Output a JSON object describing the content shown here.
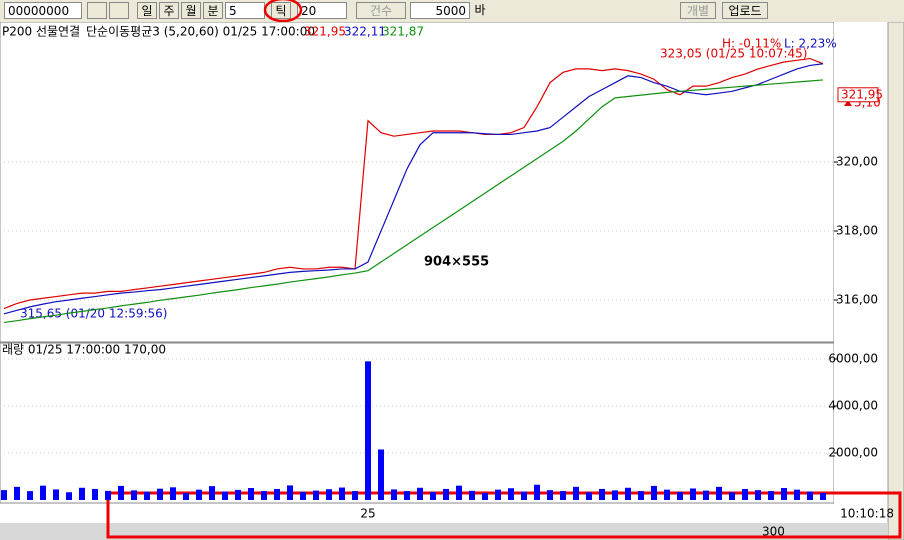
{
  "toolbar": {
    "code": "00000000",
    "periods": [
      "일",
      "주",
      "월",
      "분"
    ],
    "interval": "5",
    "tick": "틱",
    "count": "20",
    "count_type": "건수",
    "bars": "5000",
    "bars_unit": "바",
    "individual": "개별",
    "upload": "업로드"
  },
  "chart_data": [
    {
      "type": "line",
      "title": "P200 선물연결",
      "indicator": "단순이동평균3 (5,20,60) 01/25 17:00:00",
      "series": [
        {
          "color": "#e00000",
          "readout": "321,95",
          "values": [
            315.75,
            315.9,
            316.0,
            316.05,
            316.1,
            316.15,
            316.2,
            316.2,
            316.25,
            316.25,
            316.3,
            316.35,
            316.4,
            316.45,
            316.5,
            316.55,
            316.6,
            316.65,
            316.7,
            316.75,
            316.8,
            316.9,
            316.95,
            316.9,
            316.9,
            316.95,
            316.95,
            316.9,
            321.2,
            320.85,
            320.75,
            320.8,
            320.85,
            320.9,
            320.9,
            320.9,
            320.85,
            320.8,
            320.8,
            320.85,
            321.0,
            321.6,
            322.3,
            322.6,
            322.7,
            322.7,
            322.65,
            322.7,
            322.65,
            322.55,
            322.4,
            322.1,
            321.95,
            322.2,
            322.2,
            322.3,
            322.45,
            322.55,
            322.7,
            322.8,
            322.9,
            322.95,
            323.0,
            322.85
          ]
        },
        {
          "color": "#1010c0",
          "readout": "322,11",
          "values": [
            315.6,
            315.7,
            315.8,
            315.88,
            315.95,
            316.0,
            316.05,
            316.1,
            316.15,
            316.2,
            316.23,
            316.27,
            316.3,
            316.35,
            316.4,
            316.45,
            316.5,
            316.55,
            316.6,
            316.65,
            316.7,
            316.75,
            316.8,
            316.83,
            316.85,
            316.87,
            316.9,
            316.9,
            317.1,
            318.0,
            318.9,
            319.8,
            320.5,
            320.85,
            320.85,
            320.85,
            320.85,
            320.82,
            320.8,
            320.8,
            320.85,
            320.9,
            321.0,
            321.3,
            321.6,
            321.9,
            322.1,
            322.3,
            322.5,
            322.45,
            322.3,
            322.2,
            322.05,
            322.0,
            321.95,
            322.0,
            322.05,
            322.15,
            322.25,
            322.4,
            322.55,
            322.7,
            322.8,
            322.85
          ]
        },
        {
          "color": "#109010",
          "readout": "321,87",
          "values": [
            315.35,
            315.4,
            315.46,
            315.51,
            315.56,
            315.62,
            315.67,
            315.72,
            315.77,
            315.83,
            315.88,
            315.93,
            315.99,
            316.04,
            316.09,
            316.14,
            316.2,
            316.25,
            316.3,
            316.36,
            316.41,
            316.46,
            316.52,
            316.57,
            316.62,
            316.67,
            316.73,
            316.78,
            316.85,
            317.1,
            317.35,
            317.6,
            317.85,
            318.1,
            318.35,
            318.6,
            318.85,
            319.1,
            319.35,
            319.6,
            319.85,
            320.1,
            320.35,
            320.6,
            320.9,
            321.25,
            321.6,
            321.86,
            321.9,
            321.94,
            321.98,
            322.02,
            322.05,
            322.08,
            322.11,
            322.14,
            322.17,
            322.2,
            322.23,
            322.26,
            322.29,
            322.32,
            322.35,
            322.38
          ]
        }
      ],
      "ylim": [
        314.84,
        324.06
      ],
      "yticks": [
        {
          "value": 316,
          "label": "316,00"
        },
        {
          "value": 318,
          "label": "318,00"
        },
        {
          "value": 320,
          "label": "320,00"
        }
      ],
      "grid": true,
      "high_pct": "H: -0,11%",
      "low_pct": "L: 2,23%",
      "high_label": "323,05 (01/25 10:07:45)",
      "low_label": "315,65 (01/20 12:59:56)",
      "last_price": {
        "value": 321.95,
        "label": "321,95"
      },
      "change": "5,10",
      "overlay": "904×555"
    },
    {
      "type": "bar",
      "title": "래량 01/25 17:00:00 170,00",
      "color": "#0000ff",
      "categories": [
        null,
        null,
        null,
        null,
        null,
        null,
        null,
        null,
        null,
        null,
        null,
        null,
        null,
        null,
        null,
        null,
        null,
        null,
        null,
        null,
        null,
        null,
        null,
        null,
        null,
        null,
        null,
        null,
        "25",
        null,
        null,
        null,
        null,
        null,
        null,
        null,
        null,
        null,
        null,
        null,
        null,
        null,
        null,
        null,
        null,
        null,
        null,
        null,
        null,
        null,
        null,
        null,
        null,
        null,
        null,
        null,
        null,
        null,
        null,
        null,
        null,
        null,
        null,
        null
      ],
      "values": [
        420,
        560,
        380,
        610,
        450,
        330,
        520,
        470,
        390,
        600,
        410,
        350,
        480,
        540,
        300,
        440,
        590,
        360,
        430,
        510,
        380,
        470,
        620,
        340,
        400,
        460,
        530,
        380,
        5900,
        2150,
        450,
        380,
        520,
        340,
        470,
        610,
        390,
        300,
        440,
        500,
        360,
        650,
        420,
        380,
        560,
        330,
        470,
        410,
        520,
        380,
        600,
        440,
        350,
        490,
        400,
        560,
        330,
        470,
        420,
        380,
        510,
        440,
        360,
        300
      ],
      "ylim": [
        0,
        6680
      ],
      "yticks": [
        {
          "value": 2000,
          "label": "2000,00"
        },
        {
          "value": 4000,
          "label": "4000,00"
        },
        {
          "value": 6000,
          "label": "6000,00"
        }
      ]
    }
  ],
  "status": {
    "time": "10:10:18",
    "zoom": "300"
  }
}
